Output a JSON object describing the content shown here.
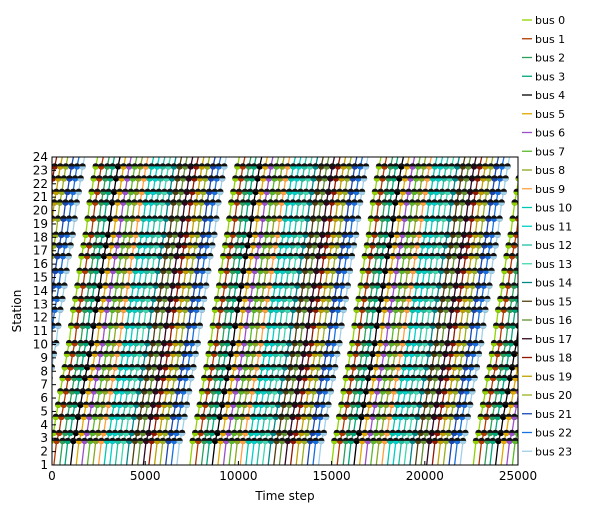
{
  "chart_data": {
    "type": "line",
    "title": "",
    "xlabel": "Time step",
    "ylabel": "Station",
    "xlim": [
      0,
      25000
    ],
    "ylim": [
      1,
      24
    ],
    "x_ticks": [
      0,
      5000,
      10000,
      15000,
      20000,
      25000
    ],
    "y_ticks": [
      1,
      2,
      3,
      4,
      5,
      6,
      7,
      8,
      9,
      10,
      11,
      12,
      13,
      14,
      15,
      16,
      17,
      18,
      19,
      20,
      21,
      22,
      23,
      24
    ],
    "stations": [
      1.0,
      2.8,
      3.4,
      4.6,
      5.5,
      6.5,
      7.5,
      8.3,
      9.3,
      10.1,
      11.4,
      12.6,
      13.4,
      14.4,
      15.5,
      16.6,
      17.4,
      18.2,
      19.4,
      20.6,
      21.4,
      22.4,
      23.3,
      24.0
    ],
    "period": 7600,
    "travel_time": 2650,
    "legend_location": "upper-right-outside",
    "grid": false,
    "series": [
      {
        "name": "bus  0",
        "color": "#8fd400",
        "start": -200
      },
      {
        "name": "bus  1",
        "color": "#b03a00",
        "start": 100
      },
      {
        "name": "bus  2",
        "color": "#2ca05a",
        "start": 420
      },
      {
        "name": "bus  3",
        "color": "#00a878",
        "start": 700
      },
      {
        "name": "bus  4",
        "color": "#000000",
        "start": 1000
      },
      {
        "name": "bus  5",
        "color": "#e0a800",
        "start": 1300
      },
      {
        "name": "bus  6",
        "color": "#9a50c8",
        "start": 1600
      },
      {
        "name": "bus  7",
        "color": "#5ab82a",
        "start": 1900
      },
      {
        "name": "bus  8",
        "color": "#8aa820",
        "start": 2200
      },
      {
        "name": "bus  9",
        "color": "#ffa040",
        "start": 2500
      },
      {
        "name": "bus  10",
        "color": "#00c8b0",
        "start": 2800
      },
      {
        "name": "bus  11",
        "color": "#00d0c8",
        "start": 3100
      },
      {
        "name": "bus  12",
        "color": "#20c0a0",
        "start": 3400
      },
      {
        "name": "bus  13",
        "color": "#40d8b0",
        "start": 3700
      },
      {
        "name": "bus  14",
        "color": "#008888",
        "start": 4000
      },
      {
        "name": "bus  15",
        "color": "#504010",
        "start": 4300
      },
      {
        "name": "bus  16",
        "color": "#609030",
        "start": 4600
      },
      {
        "name": "bus  17",
        "color": "#300820",
        "start": 4900
      },
      {
        "name": "bus  18",
        "color": "#901800",
        "start": 5200
      },
      {
        "name": "bus  19",
        "color": "#c0a000",
        "start": 5500
      },
      {
        "name": "bus  20",
        "color": "#98b020",
        "start": 5800
      },
      {
        "name": "bus  21",
        "color": "#1848b0",
        "start": 6100
      },
      {
        "name": "bus  22",
        "color": "#1870e0",
        "start": 6400
      },
      {
        "name": "bus  23",
        "color": "#a0d0e8",
        "start": 6700
      }
    ]
  }
}
